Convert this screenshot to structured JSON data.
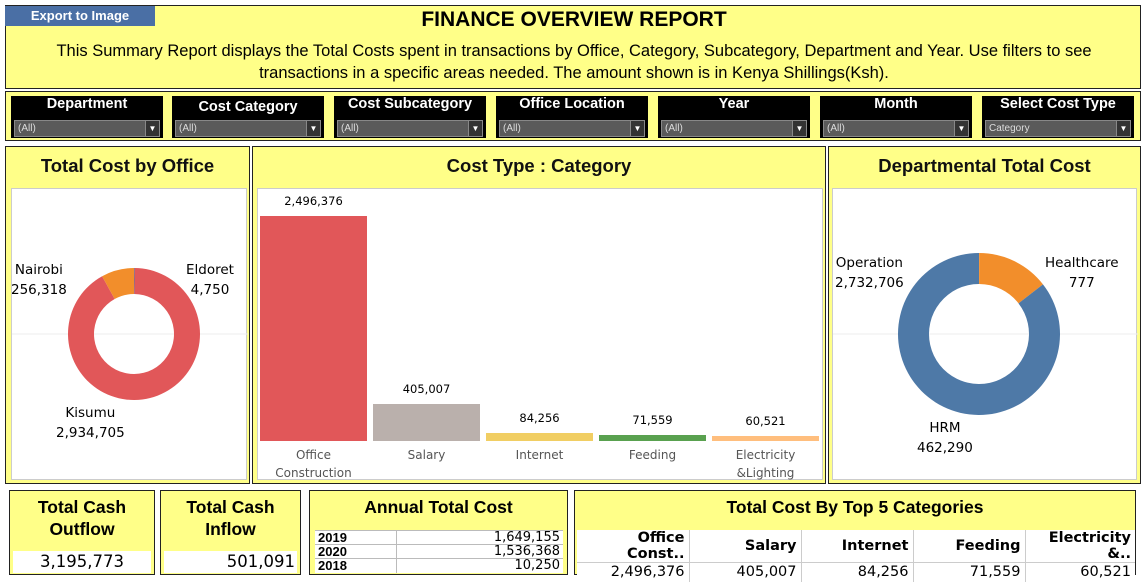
{
  "header": {
    "export_label": "Export to Image",
    "title": "FINANCE OVERVIEW REPORT",
    "description": "This Summary Report displays the Total Costs spent in transactions by Office, Category, Subcategory, Department and Year. Use filters to see transactions in a specific areas needed. The amount shown is in Kenya Shillings(Ksh)."
  },
  "filters": [
    {
      "label": "Department",
      "value": "(All)"
    },
    {
      "label": "Cost Category",
      "value": "(All)"
    },
    {
      "label": "Cost Subcategory",
      "value": "(All)"
    },
    {
      "label": "Office Location",
      "value": "(All)"
    },
    {
      "label": "Year",
      "value": "(All)"
    },
    {
      "label": "Month",
      "value": "(All)"
    },
    {
      "label": "Select Cost Type",
      "value": "Category"
    }
  ],
  "office_panel": {
    "title": "Total Cost by Office",
    "chart_data": {
      "type": "pie",
      "slices": [
        {
          "name": "Eldoret",
          "value": 4750,
          "display": "4,750",
          "color": "#4E79A7"
        },
        {
          "name": "Kisumu",
          "value": 2934705,
          "display": "2,934,705",
          "color": "#E15759"
        },
        {
          "name": "Nairobi",
          "value": 256318,
          "display": "256,318",
          "color": "#F28E2B"
        }
      ]
    }
  },
  "category_panel": {
    "title": "Cost Type : Category",
    "chart_data": {
      "type": "bar",
      "categories": [
        "Office Construction",
        "Salary",
        "Internet",
        "Feeding",
        "Electricity &Lighting"
      ],
      "category_lines": [
        [
          "Office",
          "Construction"
        ],
        [
          "Salary"
        ],
        [
          "Internet"
        ],
        [
          "Feeding"
        ],
        [
          "Electricity",
          "&Lighting"
        ]
      ],
      "values": [
        2496376,
        405007,
        84256,
        71559,
        60521
      ],
      "value_labels": [
        "2,496,376",
        "405,007",
        "84,256",
        "71,559",
        "60,521"
      ],
      "colors": [
        "#E15759",
        "#BAB0AC",
        "#F1CE63",
        "#59A14F",
        "#FFBE7D"
      ]
    }
  },
  "dept_panel": {
    "title": "Departmental Total Cost",
    "chart_data": {
      "type": "pie",
      "slices": [
        {
          "name": "Healthcare",
          "value": 777,
          "display": "777",
          "color": "#FF9DA7"
        },
        {
          "name": "HRM",
          "value": 462290,
          "display": "462,290",
          "color": "#F28E2B"
        },
        {
          "name": "Operation",
          "value": 2732706,
          "display": "2,732,706",
          "color": "#4E79A7"
        }
      ]
    }
  },
  "kpis": {
    "outflow": {
      "title": "Total Cash Outflow",
      "value": "3,195,773"
    },
    "inflow": {
      "title": "Total Cash Inflow",
      "value": "501,091"
    }
  },
  "annual": {
    "title": "Annual Total Cost",
    "rows": [
      {
        "year": "2019",
        "value": "1,649,155"
      },
      {
        "year": "2020",
        "value": "1,536,368"
      },
      {
        "year": "2018",
        "value": "10,250"
      }
    ]
  },
  "top5": {
    "title": "Total Cost By Top 5 Categories",
    "headers": [
      "Office Const..",
      "Salary",
      "Internet",
      "Feeding",
      "Electricity &.."
    ],
    "values": [
      "2,496,376",
      "405,007",
      "84,256",
      "71,559",
      "60,521"
    ]
  }
}
